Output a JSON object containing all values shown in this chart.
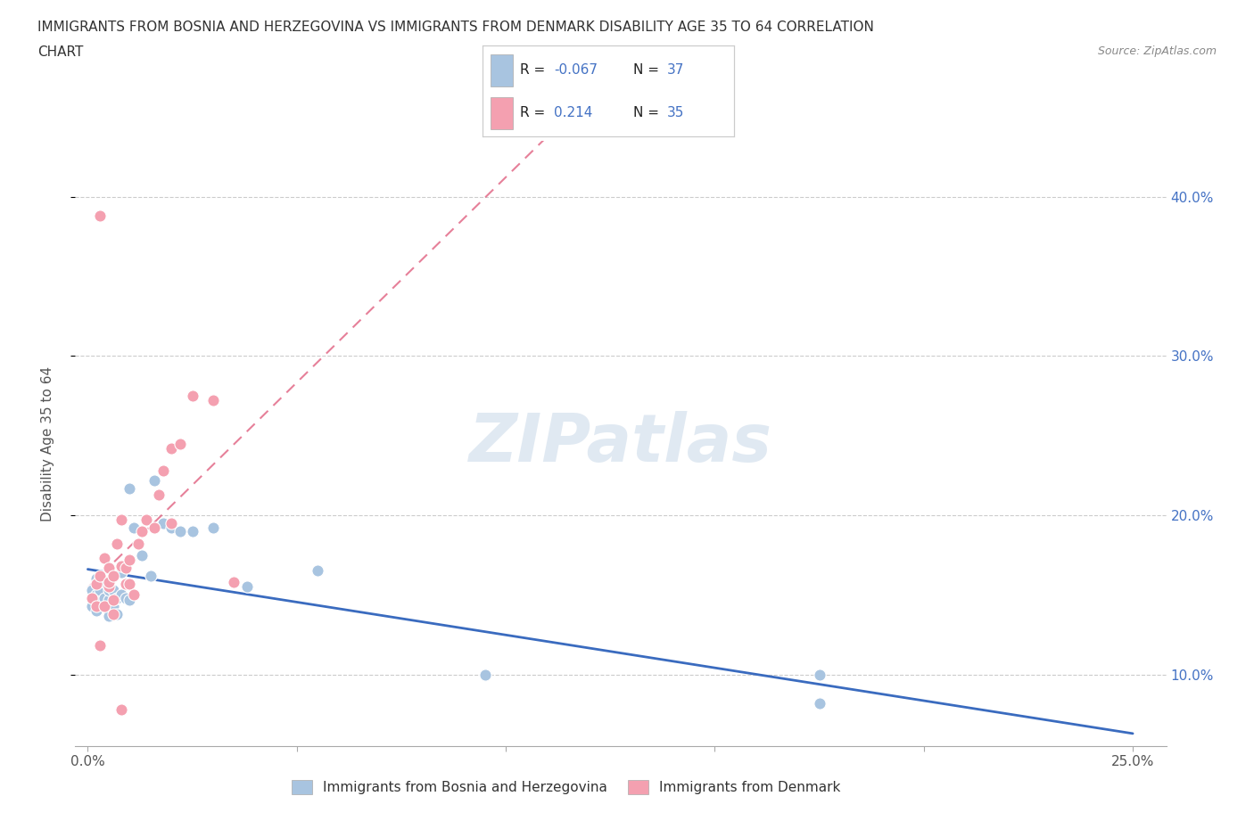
{
  "title_line1": "IMMIGRANTS FROM BOSNIA AND HERZEGOVINA VS IMMIGRANTS FROM DENMARK DISABILITY AGE 35 TO 64 CORRELATION",
  "title_line2": "CHART",
  "source_text": "Source: ZipAtlas.com",
  "ylabel": "Disability Age 35 to 64",
  "xlim_min": -0.003,
  "xlim_max": 0.258,
  "ylim_min": 0.055,
  "ylim_max": 0.435,
  "legend_label1": "Immigrants from Bosnia and Herzegovina",
  "legend_label2": "Immigrants from Denmark",
  "R1": "-0.067",
  "N1": "37",
  "R2": "0.214",
  "N2": "35",
  "color_bosnia": "#a8c4e0",
  "color_denmark": "#f4a0b0",
  "trendline_color_bosnia": "#3a6bbf",
  "trendline_color_denmark": "#e06080",
  "bosnia_x": [
    0.001,
    0.001,
    0.002,
    0.002,
    0.002,
    0.003,
    0.003,
    0.003,
    0.004,
    0.004,
    0.005,
    0.005,
    0.005,
    0.006,
    0.006,
    0.007,
    0.007,
    0.008,
    0.008,
    0.009,
    0.01,
    0.01,
    0.011,
    0.013,
    0.015,
    0.016,
    0.018,
    0.02,
    0.022,
    0.025,
    0.03,
    0.038,
    0.055,
    0.095,
    0.175,
    0.095,
    0.175
  ],
  "bosnia_y": [
    0.143,
    0.153,
    0.14,
    0.15,
    0.16,
    0.145,
    0.153,
    0.16,
    0.148,
    0.158,
    0.137,
    0.147,
    0.153,
    0.143,
    0.153,
    0.138,
    0.148,
    0.15,
    0.164,
    0.148,
    0.147,
    0.217,
    0.192,
    0.175,
    0.162,
    0.222,
    0.195,
    0.192,
    0.19,
    0.19,
    0.192,
    0.155,
    0.165,
    0.1,
    0.1,
    0.1,
    0.082
  ],
  "denmark_x": [
    0.001,
    0.002,
    0.002,
    0.003,
    0.003,
    0.004,
    0.004,
    0.005,
    0.005,
    0.005,
    0.006,
    0.006,
    0.007,
    0.008,
    0.008,
    0.009,
    0.009,
    0.01,
    0.01,
    0.011,
    0.012,
    0.013,
    0.014,
    0.016,
    0.017,
    0.018,
    0.02,
    0.02,
    0.022,
    0.025,
    0.03,
    0.035,
    0.003,
    0.006,
    0.008
  ],
  "denmark_y": [
    0.148,
    0.143,
    0.157,
    0.162,
    0.118,
    0.173,
    0.143,
    0.155,
    0.167,
    0.158,
    0.147,
    0.162,
    0.182,
    0.168,
    0.197,
    0.157,
    0.167,
    0.157,
    0.172,
    0.15,
    0.182,
    0.19,
    0.197,
    0.192,
    0.213,
    0.228,
    0.195,
    0.242,
    0.245,
    0.275,
    0.272,
    0.158,
    0.388,
    0.138,
    0.078
  ]
}
